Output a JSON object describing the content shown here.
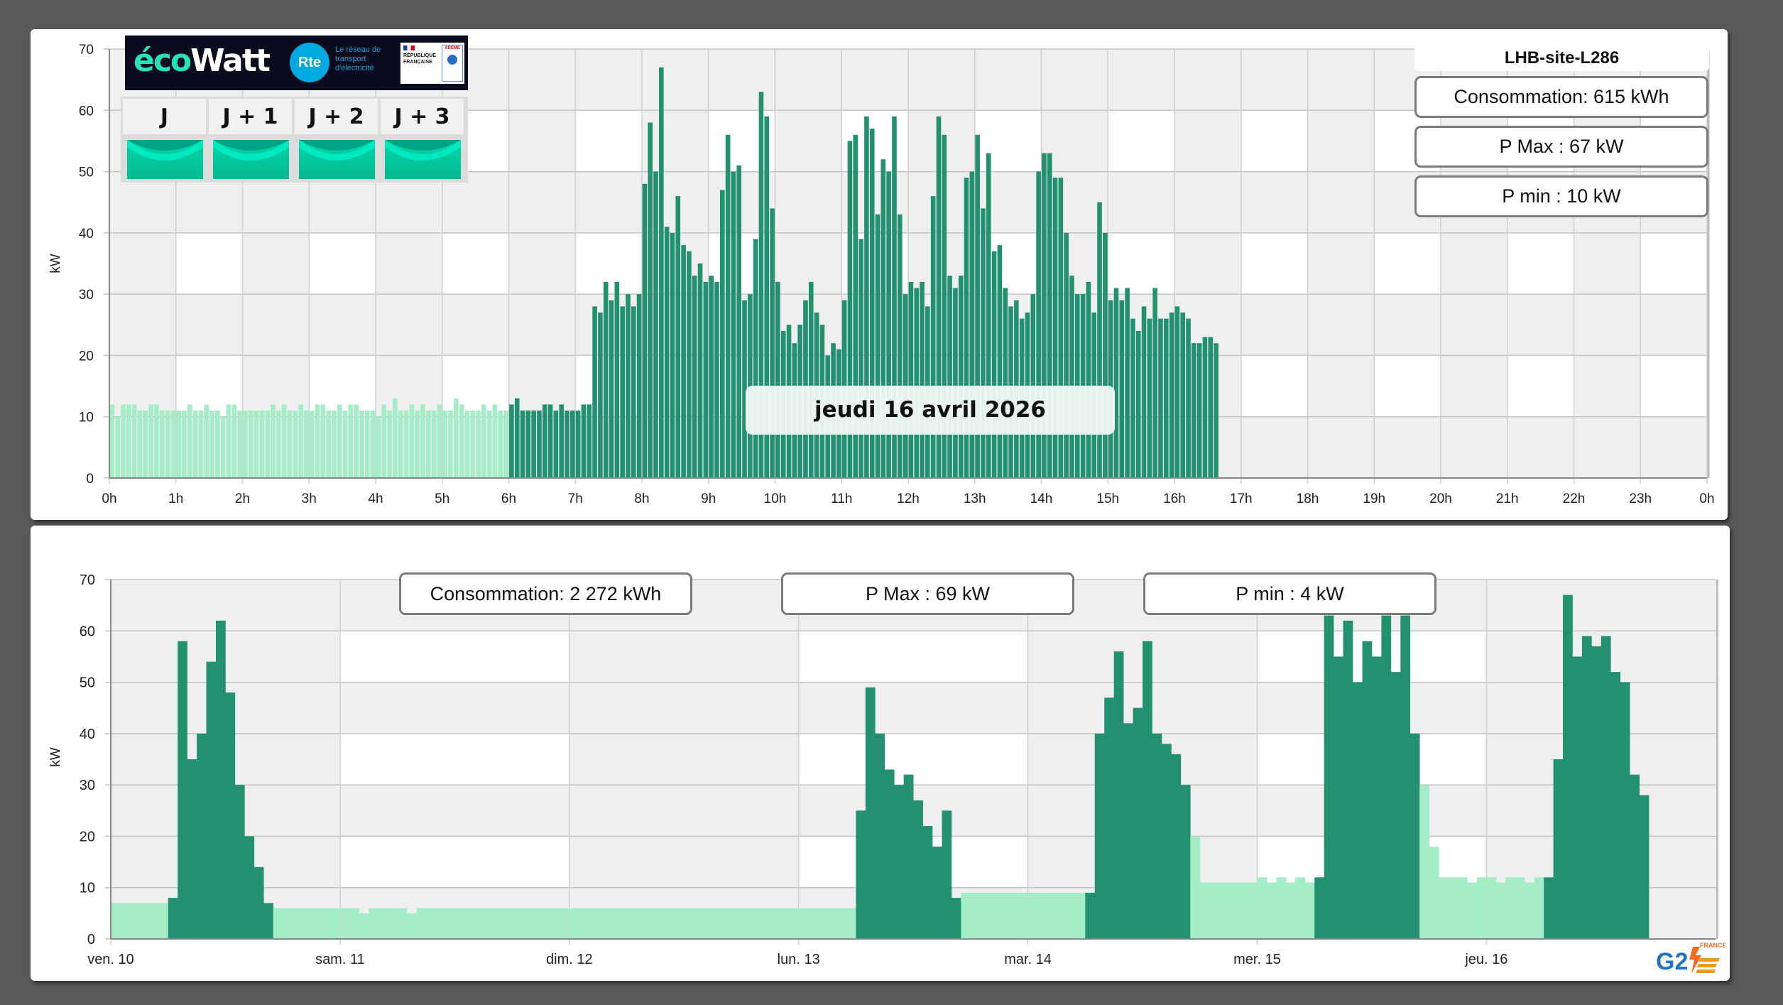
{
  "colors": {
    "hp": "#23916f",
    "hc": "#a4edc6",
    "band_gray": "#efefef",
    "band_white": "#ffffff",
    "signal_green": "#00c9a0"
  },
  "ecowatt": {
    "brand_a": "éco",
    "brand_b": "Watt",
    "rte": "Rte",
    "rte_tagline": "Le réseau de transport d'électricité",
    "republique": "RÉPUBLIQUE FRANÇAISE",
    "ademe": "ADEME",
    "days": [
      {
        "label": "J",
        "signal": "green"
      },
      {
        "label": "J + 1",
        "signal": "green"
      },
      {
        "label": "J + 2",
        "signal": "green"
      },
      {
        "label": "J + 3",
        "signal": "green"
      }
    ]
  },
  "site": {
    "name": "LHB-site-L286"
  },
  "day_panel": {
    "date_label": "jeudi 16 avril 2026",
    "consumption": "Consommation: 615 kWh",
    "pmax": "P Max :  67 kW",
    "pmin": "P min : 10 kW"
  },
  "week_panel": {
    "consumption": "Consommation: 2 272 kWh",
    "pmax": "P Max :  69 kW",
    "pmin": "P min : 4 kW"
  },
  "footer": {
    "logo_text": "G2",
    "logo_sub": "FRANCE"
  },
  "chart_data": [
    {
      "type": "bar",
      "title": "jeudi 16 avril 2026",
      "xlabel": "",
      "ylabel": "kW",
      "ylim": [
        0,
        70
      ],
      "yticks": [
        0,
        10,
        20,
        30,
        40,
        50,
        60,
        70
      ],
      "xticks": [
        "0h",
        "1h",
        "2h",
        "3h",
        "4h",
        "5h",
        "6h",
        "7h",
        "8h",
        "9h",
        "10h",
        "11h",
        "12h",
        "13h",
        "14h",
        "15h",
        "16h",
        "17h",
        "18h",
        "19h",
        "20h",
        "21h",
        "22h",
        "23h",
        "0h"
      ],
      "interval_minutes": 5,
      "grid": true,
      "series": [
        {
          "name": "Heures creuses",
          "start_hour": 0,
          "values": [
            12,
            10,
            12,
            12,
            12,
            11,
            11,
            12,
            12,
            11,
            11,
            11,
            11,
            11,
            12,
            11,
            11,
            12,
            11,
            11,
            10,
            12,
            12,
            11,
            11,
            11,
            11,
            11,
            11,
            12,
            11,
            12,
            11,
            11,
            12,
            11,
            11,
            12,
            12,
            11,
            11,
            12,
            11,
            12,
            12,
            11,
            11,
            11,
            10,
            12,
            11,
            13,
            11,
            11,
            12,
            11,
            12,
            11,
            11,
            12,
            11,
            11,
            13,
            12,
            11,
            11,
            11,
            12,
            11,
            12,
            11,
            11
          ]
        },
        {
          "name": "Heures pleines",
          "start_hour": 6,
          "values": [
            12,
            13,
            11,
            11,
            11,
            11,
            12,
            12,
            11,
            12,
            11,
            11,
            11,
            12,
            12,
            28,
            27,
            32,
            29,
            32,
            28,
            30,
            28,
            30,
            48,
            58,
            50,
            67,
            41,
            40,
            46,
            38,
            37,
            33,
            35,
            32,
            33,
            32,
            47,
            56,
            50,
            51,
            29,
            30,
            39,
            63,
            59,
            44,
            32,
            24,
            25,
            22,
            25,
            29,
            32,
            27,
            25,
            20,
            22,
            21,
            29,
            55,
            56,
            39,
            59,
            57,
            43,
            52,
            50,
            59,
            43,
            30,
            32,
            31,
            32,
            28,
            46,
            59,
            56,
            33,
            31,
            33,
            49,
            50,
            56,
            44,
            53,
            37,
            38,
            31,
            28,
            29,
            26,
            27,
            30,
            50,
            53,
            53,
            49,
            49,
            40,
            33,
            30,
            30,
            32,
            27,
            45,
            40,
            29,
            31,
            29,
            31,
            26,
            24,
            28,
            26,
            31,
            26,
            26,
            27,
            28,
            27,
            26,
            22,
            22,
            23,
            23,
            22
          ]
        }
      ]
    },
    {
      "type": "bar",
      "title": "",
      "xlabel": "",
      "ylabel": "kW",
      "ylim": [
        0,
        70
      ],
      "yticks": [
        0,
        10,
        20,
        30,
        40,
        50,
        60,
        70
      ],
      "interval_minutes": 60,
      "grid": true,
      "days": [
        {
          "label": "ven. 10",
          "hp": [
            6,
            17
          ],
          "values": [
            7,
            7,
            7,
            7,
            7,
            7,
            8,
            58,
            35,
            40,
            54,
            62,
            48,
            30,
            20,
            14,
            7,
            6,
            6,
            6,
            6,
            6,
            6,
            6
          ]
        },
        {
          "label": "sam. 11",
          "hp": null,
          "values": [
            6,
            6,
            5,
            6,
            6,
            6,
            6,
            5,
            6,
            6,
            6,
            6,
            6,
            6,
            6,
            6,
            6,
            6,
            6,
            6,
            6,
            6,
            6,
            6
          ]
        },
        {
          "label": "dim. 12",
          "hp": null,
          "values": [
            6,
            6,
            6,
            6,
            6,
            6,
            6,
            6,
            6,
            6,
            6,
            6,
            6,
            6,
            6,
            6,
            6,
            6,
            6,
            6,
            6,
            6,
            6,
            6
          ]
        },
        {
          "label": "lun. 13",
          "hp": [
            6,
            17
          ],
          "values": [
            6,
            6,
            6,
            6,
            6,
            6,
            25,
            49,
            40,
            33,
            30,
            32,
            27,
            22,
            18,
            25,
            8,
            9,
            9,
            9,
            9,
            9,
            9,
            9
          ]
        },
        {
          "label": "mar. 14",
          "hp": [
            6,
            17
          ],
          "values": [
            9,
            9,
            9,
            9,
            9,
            9,
            9,
            40,
            47,
            56,
            42,
            45,
            58,
            40,
            38,
            36,
            30,
            20,
            11,
            11,
            11,
            11,
            11,
            11
          ]
        },
        {
          "label": "mer. 15",
          "hp": [
            6,
            17
          ],
          "values": [
            12,
            11,
            12,
            11,
            12,
            11,
            12,
            63,
            55,
            62,
            50,
            58,
            55,
            63,
            52,
            63,
            40,
            30,
            18,
            12,
            12,
            12,
            11,
            12
          ]
        },
        {
          "label": "jeu. 16",
          "hp": [
            6,
            17
          ],
          "values": [
            12,
            11,
            12,
            12,
            11,
            12,
            12,
            35,
            67,
            55,
            59,
            57,
            59,
            52,
            50,
            32,
            28
          ]
        }
      ]
    }
  ]
}
